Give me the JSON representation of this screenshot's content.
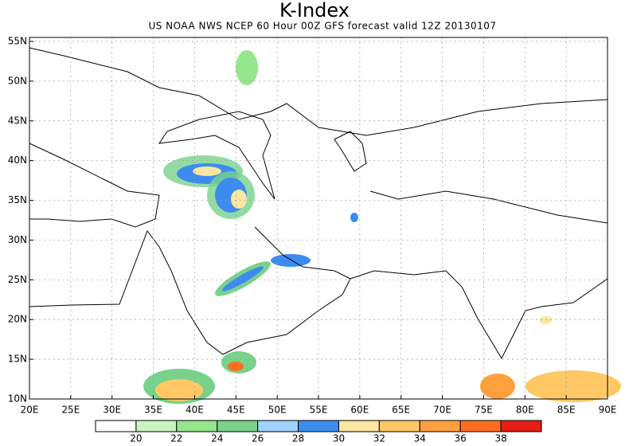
{
  "header": {
    "title": "K-Index",
    "subtitle": "US NOAA NWS NCEP 60 Hour 00Z GFS forecast valid 12Z 20130107"
  },
  "map": {
    "lon_labels": [
      "20E",
      "25E",
      "30E",
      "35E",
      "40E",
      "45E",
      "50E",
      "55E",
      "60E",
      "65E",
      "70E",
      "75E",
      "80E",
      "85E",
      "90E"
    ],
    "lat_labels": [
      "10N",
      "15N",
      "20N",
      "25N",
      "30N",
      "35N",
      "40N",
      "45N",
      "50N",
      "55N"
    ]
  },
  "legend": {
    "colors": [
      "#ffffff",
      "#c8f5c0",
      "#96e68c",
      "#78d28c",
      "#a0d2ff",
      "#3c8cf0",
      "#fae6a0",
      "#ffc864",
      "#ffa03c",
      "#ff6e1e",
      "#e61e14"
    ],
    "labels": [
      "20",
      "22",
      "24",
      "26",
      "28",
      "30",
      "32",
      "34",
      "36",
      "38"
    ]
  }
}
